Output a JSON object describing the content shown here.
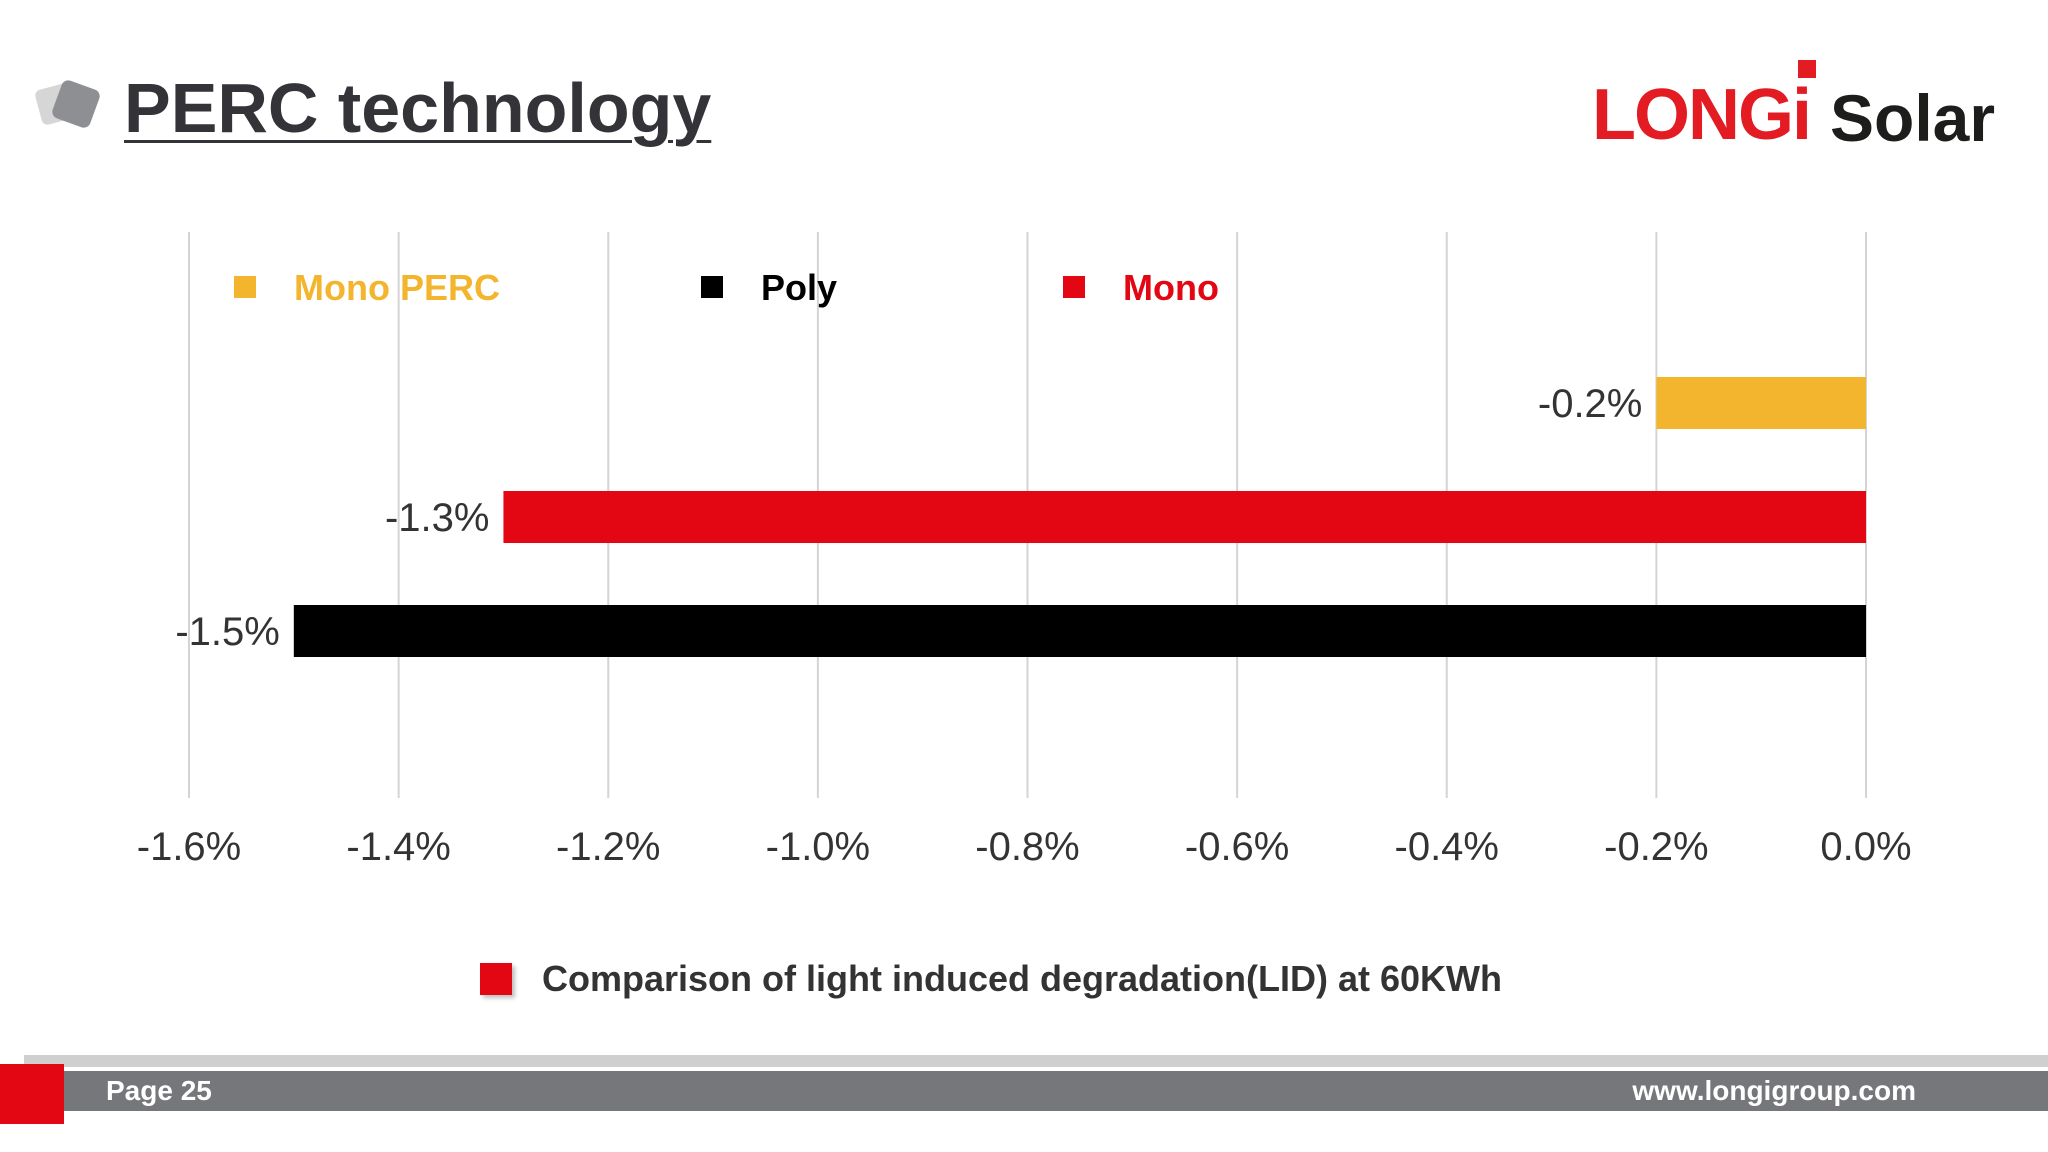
{
  "header": {
    "title": "PERC technology",
    "logo": {
      "brand": "LONGi",
      "product": "Solar"
    }
  },
  "chart_data": {
    "type": "bar",
    "orientation": "horizontal",
    "title": "",
    "xlabel": "",
    "ylabel": "",
    "xlim": [
      -1.6,
      0.0
    ],
    "x_ticks": [
      "-1.6%",
      "-1.4%",
      "-1.2%",
      "-1.0%",
      "-0.8%",
      "-0.6%",
      "-0.4%",
      "-0.2%",
      "0.0%"
    ],
    "grid": "vertical",
    "legend_placement": "top",
    "legend": [
      {
        "name": "Mono PERC",
        "color": "#f3b52d"
      },
      {
        "name": "Poly",
        "color": "#000000"
      },
      {
        "name": "Mono",
        "color": "#e30613"
      }
    ],
    "series": [
      {
        "name": "Mono PERC",
        "value": -0.2,
        "label": "-0.2%",
        "color": "#f3b52d"
      },
      {
        "name": "Mono",
        "value": -1.3,
        "label": "-1.3%",
        "color": "#e30613"
      },
      {
        "name": "Poly",
        "value": -1.5,
        "label": "-1.5%",
        "color": "#000000"
      }
    ]
  },
  "caption": "Comparison of light induced degradation(LID) at 60KWh",
  "footer": {
    "page": "Page 25",
    "url": "www.longigroup.com"
  },
  "colors": {
    "brand_red": "#e30613",
    "footer_gray": "#76777b"
  }
}
